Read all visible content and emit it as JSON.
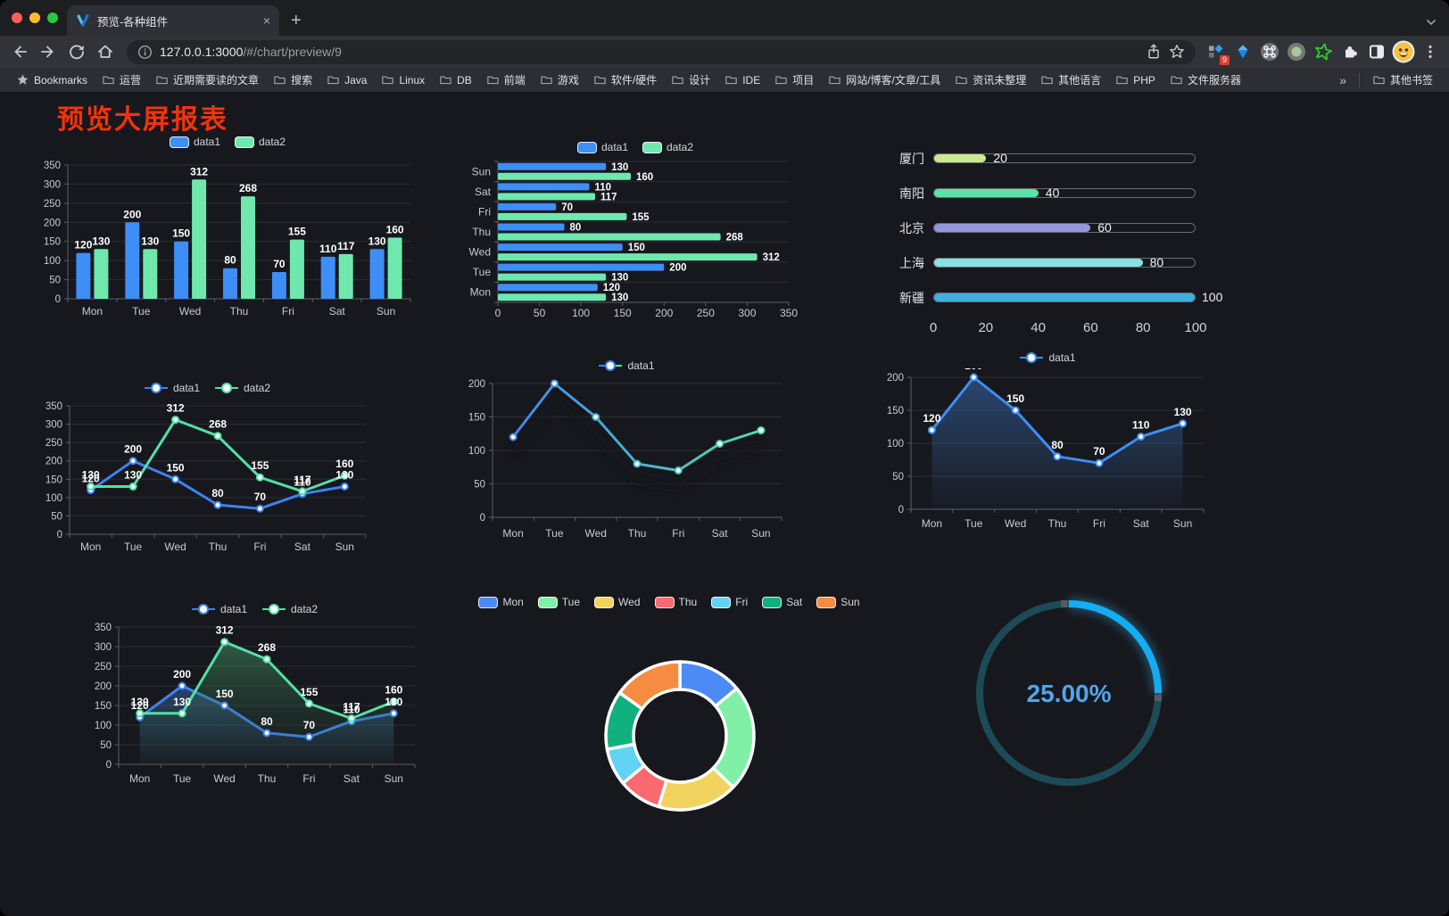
{
  "browser": {
    "tab": {
      "title": "预览-各种组件",
      "close_glyph": "×",
      "new_tab_glyph": "+"
    },
    "address": {
      "host": "127.0.0.1:3000",
      "path": "/#/chart/preview/9"
    },
    "extensions_badge": "9",
    "extension_icons": [
      "grid-diamond-icon",
      "blue-gem-icon",
      "command-circle-icon",
      "green-dot-circle-icon",
      "green-star-icon",
      "puzzle-icon",
      "split-square-icon",
      "emoji-avatar",
      "menu-dots-icon"
    ],
    "bookmarks": {
      "root_label": "Bookmarks",
      "folders": [
        "运营",
        "近期需要读的文章",
        "搜索",
        "Java",
        "Linux",
        "DB",
        "前端",
        "游戏",
        "软件/硬件",
        "设计",
        "IDE",
        "项目",
        "网站/博客/文章/工具",
        "资讯未整理",
        "其他语言",
        "PHP",
        "文件服务器"
      ],
      "overflow_glyph": "»",
      "other_label": "其他书签"
    }
  },
  "page": {
    "title": "预览大屏报表",
    "title_color": "#f2330c"
  },
  "chart_data": [
    {
      "type": "bar",
      "categories": [
        "Mon",
        "Tue",
        "Wed",
        "Thu",
        "Fri",
        "Sat",
        "Sun"
      ],
      "series": [
        {
          "name": "data1",
          "color": "#3E8EF7",
          "values": [
            120,
            200,
            150,
            80,
            70,
            110,
            130
          ]
        },
        {
          "name": "data2",
          "color": "#6FE8AE",
          "values": [
            130,
            130,
            312,
            268,
            155,
            117,
            160
          ]
        }
      ],
      "ylim": [
        0,
        350
      ],
      "ystep": 50,
      "grid": true,
      "legend_position": "top",
      "value_labels": true
    },
    {
      "type": "bar-horizontal",
      "categories": [
        "Mon",
        "Tue",
        "Wed",
        "Thu",
        "Fri",
        "Sat",
        "Sun"
      ],
      "series": [
        {
          "name": "data1",
          "color": "#3E8EF7",
          "values": [
            120,
            200,
            150,
            80,
            70,
            110,
            130
          ]
        },
        {
          "name": "data2",
          "color": "#6FE8AE",
          "values": [
            130,
            130,
            312,
            268,
            155,
            117,
            160
          ]
        }
      ],
      "xlim": [
        0,
        350
      ],
      "xstep": 50,
      "grid": true,
      "legend_position": "top",
      "value_labels": true
    },
    {
      "type": "progress-list",
      "max": 100,
      "axis_ticks": [
        0,
        20,
        40,
        60,
        80,
        100
      ],
      "items": [
        {
          "label": "厦门",
          "value": 20,
          "color": "#CBE98F"
        },
        {
          "label": "南阳",
          "value": 40,
          "color": "#5CE2A9"
        },
        {
          "label": "北京",
          "value": 60,
          "color": "#9397DC"
        },
        {
          "label": "上海",
          "value": 80,
          "color": "#86E3DF"
        },
        {
          "label": "新疆",
          "value": 100,
          "color": "#3FAEE2"
        }
      ]
    },
    {
      "type": "line",
      "categories": [
        "Mon",
        "Tue",
        "Wed",
        "Thu",
        "Fri",
        "Sat",
        "Sun"
      ],
      "series": [
        {
          "name": "data1",
          "color": "#3E82F0",
          "values": [
            120,
            200,
            150,
            80,
            70,
            110,
            130
          ]
        },
        {
          "name": "data2",
          "color": "#54DFA6",
          "values": [
            130,
            130,
            312,
            268,
            155,
            117,
            160
          ]
        }
      ],
      "ylim": [
        0,
        350
      ],
      "ystep": 50,
      "legend_position": "top",
      "value_labels": true
    },
    {
      "type": "line",
      "categories": [
        "Mon",
        "Tue",
        "Wed",
        "Thu",
        "Fri",
        "Sat",
        "Sun"
      ],
      "series": [
        {
          "name": "data1",
          "gradient": [
            "#3E82F0",
            "#55E3A8"
          ],
          "values": [
            120,
            200,
            150,
            80,
            70,
            110,
            130
          ],
          "shadow": true
        }
      ],
      "ylim": [
        0,
        200
      ],
      "ystep": 50,
      "legend_position": "top",
      "value_labels": false
    },
    {
      "type": "area",
      "categories": [
        "Mon",
        "Tue",
        "Wed",
        "Thu",
        "Fri",
        "Sat",
        "Sun"
      ],
      "series": [
        {
          "name": "data1",
          "color": "#3E8EF7",
          "area": [
            "rgba(56,110,180,0.55)",
            "rgba(56,110,180,0.03)"
          ],
          "values": [
            120,
            200,
            150,
            80,
            70,
            110,
            130
          ]
        }
      ],
      "ylim": [
        0,
        200
      ],
      "ystep": 50,
      "legend_position": "top",
      "value_labels": true
    },
    {
      "type": "area",
      "categories": [
        "Mon",
        "Tue",
        "Wed",
        "Thu",
        "Fri",
        "Sat",
        "Sun"
      ],
      "series": [
        {
          "name": "data1",
          "color": "#3E82F0",
          "area": [
            "rgba(62,110,170,0.5)",
            "rgba(62,110,170,0.04)"
          ],
          "values": [
            120,
            200,
            150,
            80,
            70,
            110,
            130
          ]
        },
        {
          "name": "data2",
          "color": "#54DFA6",
          "area": [
            "rgba(70,160,110,0.5)",
            "rgba(40,80,60,0.04)"
          ],
          "values": [
            130,
            130,
            312,
            268,
            155,
            117,
            160
          ]
        }
      ],
      "ylim": [
        0,
        350
      ],
      "ystep": 50,
      "legend_position": "top",
      "value_labels": true
    },
    {
      "type": "donut",
      "categories": [
        "Mon",
        "Tue",
        "Wed",
        "Thu",
        "Fri",
        "Sat",
        "Sun"
      ],
      "values": [
        120,
        200,
        150,
        80,
        70,
        110,
        130
      ],
      "colors": [
        "#4C8BF5",
        "#7FF0A6",
        "#F3D35F",
        "#F9696F",
        "#62D2F5",
        "#11B17F",
        "#F68C42"
      ],
      "legend_position": "top"
    },
    {
      "type": "gauge",
      "value": 25,
      "display": "25.00%",
      "progress_color": "#14ACF2",
      "track_color": "#1D4A57",
      "text_color": "#4EA7EC"
    }
  ]
}
